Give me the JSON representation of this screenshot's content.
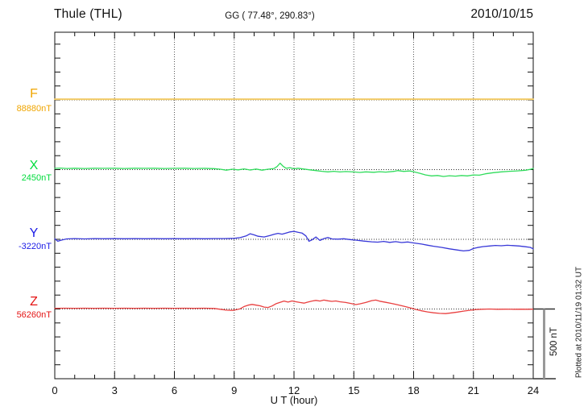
{
  "header": {
    "station": "Thule (THL)",
    "coordinates": "GG ( 77.48°, 290.83°)",
    "date": "2010/10/15"
  },
  "footer": {
    "plotted_at": "Plotted at 2010/11/19 01:32 UT"
  },
  "axis": {
    "xlabel": "U T (hour)",
    "x_ticks": [
      {
        "hour": 0,
        "label": "0"
      },
      {
        "hour": 3,
        "label": "3"
      },
      {
        "hour": 6,
        "label": "6"
      },
      {
        "hour": 9,
        "label": "9"
      },
      {
        "hour": 12,
        "label": "12"
      },
      {
        "hour": 15,
        "label": "15"
      },
      {
        "hour": 18,
        "label": "18"
      },
      {
        "hour": 21,
        "label": "21"
      },
      {
        "hour": 24,
        "label": "24"
      }
    ],
    "x_minor_step_hours": 1,
    "grid_hours": [
      3,
      6,
      9,
      12,
      15,
      18,
      21
    ],
    "y_tick_interval_nT": 100
  },
  "scale_bar": {
    "label": "500 nT",
    "value_nT": 500
  },
  "chart_data": {
    "type": "line",
    "title": "Thule (THL)",
    "subtitle": "GG ( 77.48°, 290.83°)   2010/10/15",
    "xlabel": "U T (hour)",
    "x_range": [
      0,
      24
    ],
    "grid": "dotted vertical every 3 h, dotted horizontal baseline per component",
    "legend_position": "left margin component labels",
    "nT_per_division": 500,
    "points_format": "[UT hour, deviation from component baseline in nT]",
    "series": [
      {
        "component": "F",
        "baseline_value": "88880nT",
        "label_color": "#F0A500",
        "line_color": "#F2CB67",
        "line_width": 2,
        "points": [
          [
            0,
            5
          ],
          [
            4,
            5
          ],
          [
            8,
            5
          ],
          [
            12,
            5
          ],
          [
            16,
            5
          ],
          [
            20,
            5
          ],
          [
            24,
            5
          ]
        ]
      },
      {
        "component": "X",
        "baseline_value": "2450nT",
        "label_color": "#00DC3C",
        "line_color": "#30DC5C",
        "line_width": 1.3,
        "points": [
          [
            0,
            9
          ],
          [
            0.3,
            11
          ],
          [
            0.6,
            8
          ],
          [
            1,
            10
          ],
          [
            1.5,
            8
          ],
          [
            2,
            10
          ],
          [
            2.5,
            9
          ],
          [
            3,
            10
          ],
          [
            3.5,
            8
          ],
          [
            4,
            10
          ],
          [
            4.5,
            9
          ],
          [
            5,
            10
          ],
          [
            5.5,
            8
          ],
          [
            6,
            9
          ],
          [
            6.5,
            10
          ],
          [
            7,
            8
          ],
          [
            7.5,
            9
          ],
          [
            8,
            7
          ],
          [
            8.3,
            3
          ],
          [
            8.6,
            -4
          ],
          [
            8.9,
            3
          ],
          [
            9.2,
            -2
          ],
          [
            9.5,
            5
          ],
          [
            9.8,
            -3
          ],
          [
            10.1,
            4
          ],
          [
            10.4,
            -4
          ],
          [
            10.7,
            3
          ],
          [
            11,
            8
          ],
          [
            11.15,
            22
          ],
          [
            11.3,
            46
          ],
          [
            11.45,
            24
          ],
          [
            11.6,
            10
          ],
          [
            11.8,
            14
          ],
          [
            12,
            6
          ],
          [
            12.2,
            10
          ],
          [
            12.5,
            4
          ],
          [
            12.8,
            -2
          ],
          [
            13.1,
            -7
          ],
          [
            13.4,
            -12
          ],
          [
            13.7,
            -16
          ],
          [
            14,
            -12
          ],
          [
            14.3,
            -17
          ],
          [
            14.6,
            -14
          ],
          [
            15,
            -17
          ],
          [
            15.3,
            -20
          ],
          [
            15.6,
            -16
          ],
          [
            16,
            -19
          ],
          [
            16.3,
            -15
          ],
          [
            16.6,
            -18
          ],
          [
            17,
            -13
          ],
          [
            17.2,
            -7
          ],
          [
            17.5,
            -13
          ],
          [
            17.8,
            -10
          ],
          [
            18,
            -15
          ],
          [
            18.3,
            -26
          ],
          [
            18.6,
            -38
          ],
          [
            18.9,
            -45
          ],
          [
            19.2,
            -42
          ],
          [
            19.5,
            -49
          ],
          [
            19.8,
            -44
          ],
          [
            20.1,
            -47
          ],
          [
            20.4,
            -42
          ],
          [
            20.7,
            -45
          ],
          [
            21,
            -38
          ],
          [
            21.3,
            -40
          ],
          [
            21.6,
            -30
          ],
          [
            22,
            -22
          ],
          [
            22.4,
            -16
          ],
          [
            22.8,
            -12
          ],
          [
            23.2,
            -9
          ],
          [
            23.6,
            -5
          ],
          [
            23.85,
            2
          ],
          [
            24,
            8
          ]
        ]
      },
      {
        "component": "Y",
        "baseline_value": "-3220nT",
        "label_color": "#1A1AE6",
        "line_color": "#3838D8",
        "line_width": 1.3,
        "points": [
          [
            0,
            4
          ],
          [
            0.15,
            -14
          ],
          [
            0.35,
            -5
          ],
          [
            0.6,
            3
          ],
          [
            1,
            5
          ],
          [
            1.5,
            3
          ],
          [
            2,
            5
          ],
          [
            2.5,
            4
          ],
          [
            3,
            5
          ],
          [
            3.5,
            4
          ],
          [
            4,
            5
          ],
          [
            4.5,
            4
          ],
          [
            5,
            5
          ],
          [
            5.5,
            4
          ],
          [
            6,
            5
          ],
          [
            6.5,
            4
          ],
          [
            7,
            5
          ],
          [
            7.5,
            4
          ],
          [
            8,
            5
          ],
          [
            8.5,
            5
          ],
          [
            9,
            7
          ],
          [
            9.3,
            12
          ],
          [
            9.6,
            24
          ],
          [
            9.8,
            40
          ],
          [
            10,
            32
          ],
          [
            10.2,
            22
          ],
          [
            10.5,
            17
          ],
          [
            10.8,
            27
          ],
          [
            11,
            36
          ],
          [
            11.2,
            43
          ],
          [
            11.4,
            37
          ],
          [
            11.6,
            45
          ],
          [
            11.8,
            53
          ],
          [
            12,
            57
          ],
          [
            12.2,
            51
          ],
          [
            12.4,
            45
          ],
          [
            12.6,
            24
          ],
          [
            12.75,
            -14
          ],
          [
            12.9,
            -4
          ],
          [
            13.1,
            17
          ],
          [
            13.3,
            -8
          ],
          [
            13.5,
            5
          ],
          [
            13.7,
            13
          ],
          [
            13.9,
            3
          ],
          [
            14.2,
            1
          ],
          [
            14.5,
            4
          ],
          [
            14.8,
            -2
          ],
          [
            15.1,
            -6
          ],
          [
            15.5,
            -13
          ],
          [
            15.9,
            -18
          ],
          [
            16.2,
            -20
          ],
          [
            16.5,
            -15
          ],
          [
            16.8,
            -22
          ],
          [
            17.1,
            -17
          ],
          [
            17.4,
            -23
          ],
          [
            17.7,
            -19
          ],
          [
            18,
            -26
          ],
          [
            18.4,
            -34
          ],
          [
            18.7,
            -42
          ],
          [
            19,
            -50
          ],
          [
            19.4,
            -58
          ],
          [
            19.8,
            -68
          ],
          [
            20.2,
            -77
          ],
          [
            20.5,
            -83
          ],
          [
            20.8,
            -79
          ],
          [
            21,
            -66
          ],
          [
            21.2,
            -59
          ],
          [
            21.5,
            -52
          ],
          [
            21.8,
            -48
          ],
          [
            22.1,
            -44
          ],
          [
            22.4,
            -46
          ],
          [
            22.7,
            -43
          ],
          [
            23,
            -45
          ],
          [
            23.3,
            -48
          ],
          [
            23.6,
            -53
          ],
          [
            23.85,
            -58
          ],
          [
            24,
            -68
          ]
        ]
      },
      {
        "component": "Z",
        "baseline_value": "56260nT",
        "label_color": "#E41414",
        "line_color": "#E94040",
        "line_width": 1.3,
        "points": [
          [
            0,
            5
          ],
          [
            0.5,
            6
          ],
          [
            1,
            5
          ],
          [
            1.5,
            6
          ],
          [
            2,
            5
          ],
          [
            2.5,
            6
          ],
          [
            3,
            5
          ],
          [
            3.5,
            6
          ],
          [
            4,
            5
          ],
          [
            4.5,
            6
          ],
          [
            5,
            5
          ],
          [
            5.5,
            6
          ],
          [
            6,
            5
          ],
          [
            6.5,
            6
          ],
          [
            7,
            5
          ],
          [
            7.5,
            6
          ],
          [
            8,
            4
          ],
          [
            8.3,
            -2
          ],
          [
            8.6,
            -8
          ],
          [
            8.9,
            -10
          ],
          [
            9.1,
            -5
          ],
          [
            9.3,
            2
          ],
          [
            9.5,
            18
          ],
          [
            9.7,
            28
          ],
          [
            9.9,
            33
          ],
          [
            10.1,
            28
          ],
          [
            10.3,
            23
          ],
          [
            10.5,
            14
          ],
          [
            10.7,
            11
          ],
          [
            10.9,
            22
          ],
          [
            11.1,
            38
          ],
          [
            11.3,
            48
          ],
          [
            11.5,
            57
          ],
          [
            11.7,
            50
          ],
          [
            11.9,
            58
          ],
          [
            12.1,
            52
          ],
          [
            12.3,
            47
          ],
          [
            12.5,
            42
          ],
          [
            12.7,
            50
          ],
          [
            12.9,
            57
          ],
          [
            13.1,
            62
          ],
          [
            13.3,
            57
          ],
          [
            13.5,
            64
          ],
          [
            13.7,
            59
          ],
          [
            13.9,
            55
          ],
          [
            14.1,
            58
          ],
          [
            14.3,
            52
          ],
          [
            14.6,
            47
          ],
          [
            14.9,
            38
          ],
          [
            15.1,
            32
          ],
          [
            15.3,
            37
          ],
          [
            15.6,
            47
          ],
          [
            15.9,
            60
          ],
          [
            16.1,
            64
          ],
          [
            16.3,
            56
          ],
          [
            16.6,
            48
          ],
          [
            16.9,
            40
          ],
          [
            17.2,
            30
          ],
          [
            17.5,
            20
          ],
          [
            17.8,
            9
          ],
          [
            18.1,
            -3
          ],
          [
            18.4,
            -13
          ],
          [
            18.7,
            -21
          ],
          [
            19,
            -27
          ],
          [
            19.3,
            -31
          ],
          [
            19.6,
            -33
          ],
          [
            19.9,
            -28
          ],
          [
            20.2,
            -22
          ],
          [
            20.5,
            -15
          ],
          [
            20.8,
            -9
          ],
          [
            21.1,
            -4
          ],
          [
            21.4,
            -2
          ],
          [
            21.8,
            0
          ],
          [
            22.2,
            -2
          ],
          [
            22.6,
            -1
          ],
          [
            23,
            -2
          ],
          [
            23.4,
            -1
          ],
          [
            23.7,
            -2
          ],
          [
            24,
            -1
          ]
        ]
      }
    ]
  }
}
